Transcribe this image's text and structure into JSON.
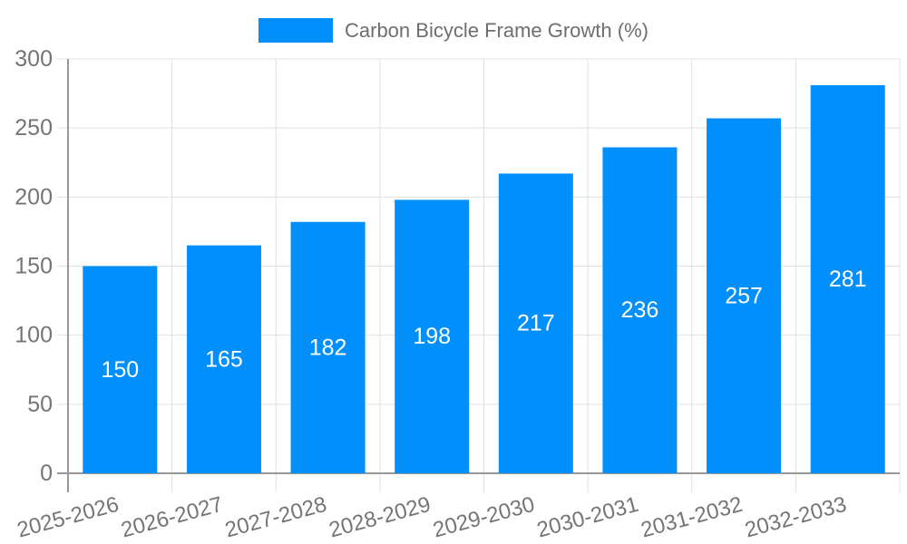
{
  "legend": {
    "label": "Carbon Bicycle Frame Growth (%)"
  },
  "colors": {
    "bar": "#008FFB",
    "axis": "#999999",
    "grid": "#E0E0E0",
    "tick_label": "#757575",
    "bar_label": "#FFFFFF",
    "legend_text": "#6E6E6E",
    "background": "#FFFFFF"
  },
  "chart_data": {
    "type": "bar",
    "title": "Carbon Bicycle Frame Growth (%)",
    "categories": [
      "2025-2026",
      "2026-2027",
      "2027-2028",
      "2028-2029",
      "2029-2030",
      "2030-2031",
      "2031-2032",
      "2032-2033"
    ],
    "values": [
      150,
      165,
      182,
      198,
      217,
      236,
      257,
      281
    ],
    "xlabel": "",
    "ylabel": "",
    "ylim": [
      0,
      300
    ],
    "yticks": [
      0,
      50,
      100,
      150,
      200,
      250,
      300
    ],
    "grid": true,
    "legend_position": "top-center",
    "bar_label_position": "inside-center",
    "x_label_rotation_deg": -15
  }
}
